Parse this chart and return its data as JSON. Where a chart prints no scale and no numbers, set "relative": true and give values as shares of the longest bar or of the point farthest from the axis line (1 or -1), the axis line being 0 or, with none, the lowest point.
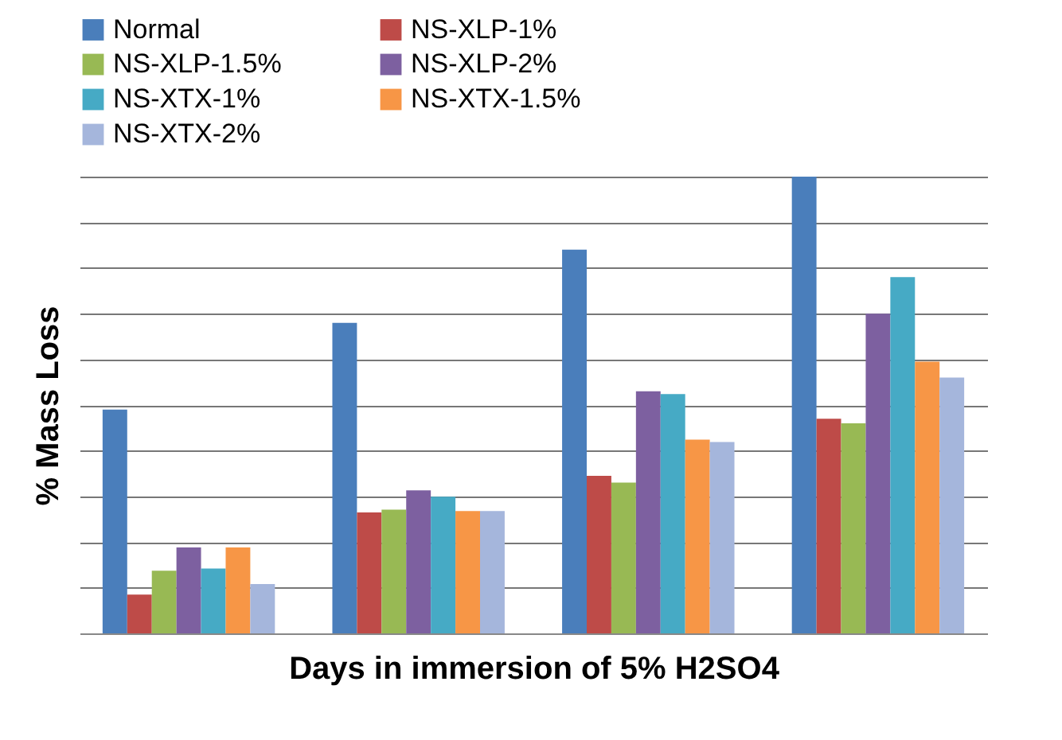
{
  "chart_data": {
    "type": "bar",
    "relative": true,
    "xlabel": "Days in immersion of 5% H2SO4",
    "ylabel": "% Mass Loss",
    "categories": [
      null,
      null,
      null,
      null
    ],
    "grid": "y",
    "legend": "top",
    "series": [
      {
        "name": "Normal",
        "color": "#4a7ebb",
        "values": [
          0.49,
          0.68,
          0.84,
          1
        ]
      },
      {
        "name": "NS-XLP-1%",
        "color": "#be4b48",
        "values": [
          0.085,
          0.265,
          0.345,
          0.47
        ]
      },
      {
        "name": "NS-XLP-1.5%",
        "color": "#98b954",
        "values": [
          0.137,
          0.271,
          0.33,
          0.46
        ]
      },
      {
        "name": "NS-XLP-2%",
        "color": "#7d60a0",
        "values": [
          0.188,
          0.313,
          0.53,
          0.7
        ]
      },
      {
        "name": "NS-XTX-1%",
        "color": "#46aac5",
        "values": [
          0.142,
          0.299,
          0.524,
          0.78
        ]
      },
      {
        "name": "NS-XTX-1.5%",
        "color": "#f79646",
        "values": [
          0.188,
          0.268,
          0.424,
          0.595
        ]
      },
      {
        "name": "NS-XTX-2%",
        "color": "#a5b6dc",
        "values": [
          0.108,
          0.268,
          0.419,
          0.56
        ]
      }
    ]
  }
}
